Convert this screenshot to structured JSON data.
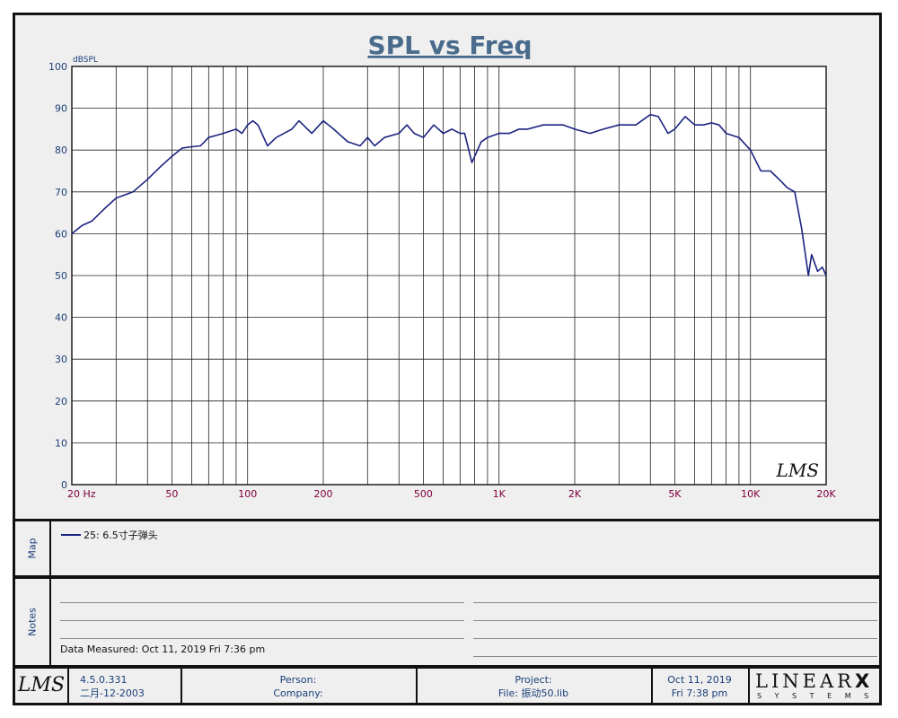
{
  "chart_data": {
    "type": "line",
    "title": "SPL vs Freq",
    "ylabel": "dBSPL",
    "xlabel": "",
    "xscale": "log",
    "xlim": [
      20,
      20000
    ],
    "ylim": [
      0,
      100
    ],
    "yticks": [
      0,
      10,
      20,
      30,
      40,
      50,
      60,
      70,
      80,
      90,
      100
    ],
    "yticklabels": [
      "0",
      "10",
      "20",
      "30",
      "40",
      "50",
      "60",
      "70",
      "80",
      "90",
      "100"
    ],
    "xticks": [
      20,
      50,
      100,
      200,
      500,
      1000,
      2000,
      5000,
      10000,
      20000
    ],
    "xticklabels": [
      "20  Hz",
      "50",
      "100",
      "200",
      "500",
      "1K",
      "2K",
      "5K",
      "10K",
      "20K"
    ],
    "grid": true,
    "watermark": "LMS",
    "series": [
      {
        "name": "25: 6.5寸子弹头",
        "color": "#1a237e",
        "points": [
          [
            20,
            60
          ],
          [
            22,
            62
          ],
          [
            24,
            63
          ],
          [
            27,
            66
          ],
          [
            30,
            68.5
          ],
          [
            35,
            70
          ],
          [
            40,
            73
          ],
          [
            45,
            76
          ],
          [
            50,
            78.5
          ],
          [
            55,
            80.5
          ],
          [
            60,
            80.8
          ],
          [
            65,
            81
          ],
          [
            70,
            83
          ],
          [
            75,
            83.5
          ],
          [
            80,
            84
          ],
          [
            90,
            85
          ],
          [
            95,
            84
          ],
          [
            100,
            86
          ],
          [
            105,
            87
          ],
          [
            110,
            86
          ],
          [
            120,
            81
          ],
          [
            130,
            83
          ],
          [
            150,
            85
          ],
          [
            160,
            87
          ],
          [
            180,
            84
          ],
          [
            200,
            87
          ],
          [
            220,
            85
          ],
          [
            250,
            82
          ],
          [
            280,
            81
          ],
          [
            300,
            83
          ],
          [
            320,
            81
          ],
          [
            350,
            83
          ],
          [
            400,
            84
          ],
          [
            430,
            86
          ],
          [
            460,
            84
          ],
          [
            500,
            83
          ],
          [
            550,
            86
          ],
          [
            600,
            84
          ],
          [
            650,
            85
          ],
          [
            700,
            84
          ],
          [
            730,
            84
          ],
          [
            780,
            77
          ],
          [
            850,
            82
          ],
          [
            900,
            83
          ],
          [
            1000,
            84
          ],
          [
            1100,
            84
          ],
          [
            1200,
            85
          ],
          [
            1300,
            85
          ],
          [
            1500,
            86
          ],
          [
            1800,
            86
          ],
          [
            2000,
            85
          ],
          [
            2300,
            84
          ],
          [
            2600,
            85
          ],
          [
            3000,
            86
          ],
          [
            3500,
            86
          ],
          [
            4000,
            88.5
          ],
          [
            4300,
            88
          ],
          [
            4700,
            84
          ],
          [
            5000,
            85
          ],
          [
            5500,
            88
          ],
          [
            6000,
            86
          ],
          [
            6500,
            86
          ],
          [
            7000,
            86.5
          ],
          [
            7500,
            86
          ],
          [
            8000,
            84
          ],
          [
            9000,
            83
          ],
          [
            10000,
            80
          ],
          [
            11000,
            75
          ],
          [
            12000,
            75
          ],
          [
            13000,
            73
          ],
          [
            14000,
            71
          ],
          [
            15000,
            70
          ],
          [
            16000,
            61
          ],
          [
            17000,
            50
          ],
          [
            17500,
            55
          ],
          [
            18500,
            51
          ],
          [
            19300,
            52
          ],
          [
            20000,
            50
          ]
        ]
      }
    ]
  },
  "map": {
    "label": "Map",
    "legend": "25: 6.5寸子弹头"
  },
  "notes": {
    "label": "Notes",
    "measured": "Data Measured: Oct 11, 2019  Fri  7:36 pm"
  },
  "footer": {
    "logo": "LMS",
    "version": "4.5.0.331",
    "build_date": "二月-12-2003",
    "person": "Person:",
    "company": "Company:",
    "project": "Project:",
    "file": "File: 振动50.lib",
    "date": "Oct 11, 2019",
    "time": "Fri  7:38 pm",
    "brand": "LINEAR",
    "brand_mark": "X",
    "brand_sub": "S Y S T E M S"
  },
  "colors": {
    "curve": "#1a237e",
    "axis_label": "#1a3f7a",
    "x_tick": "#800040",
    "title": "#4a6c8c"
  }
}
